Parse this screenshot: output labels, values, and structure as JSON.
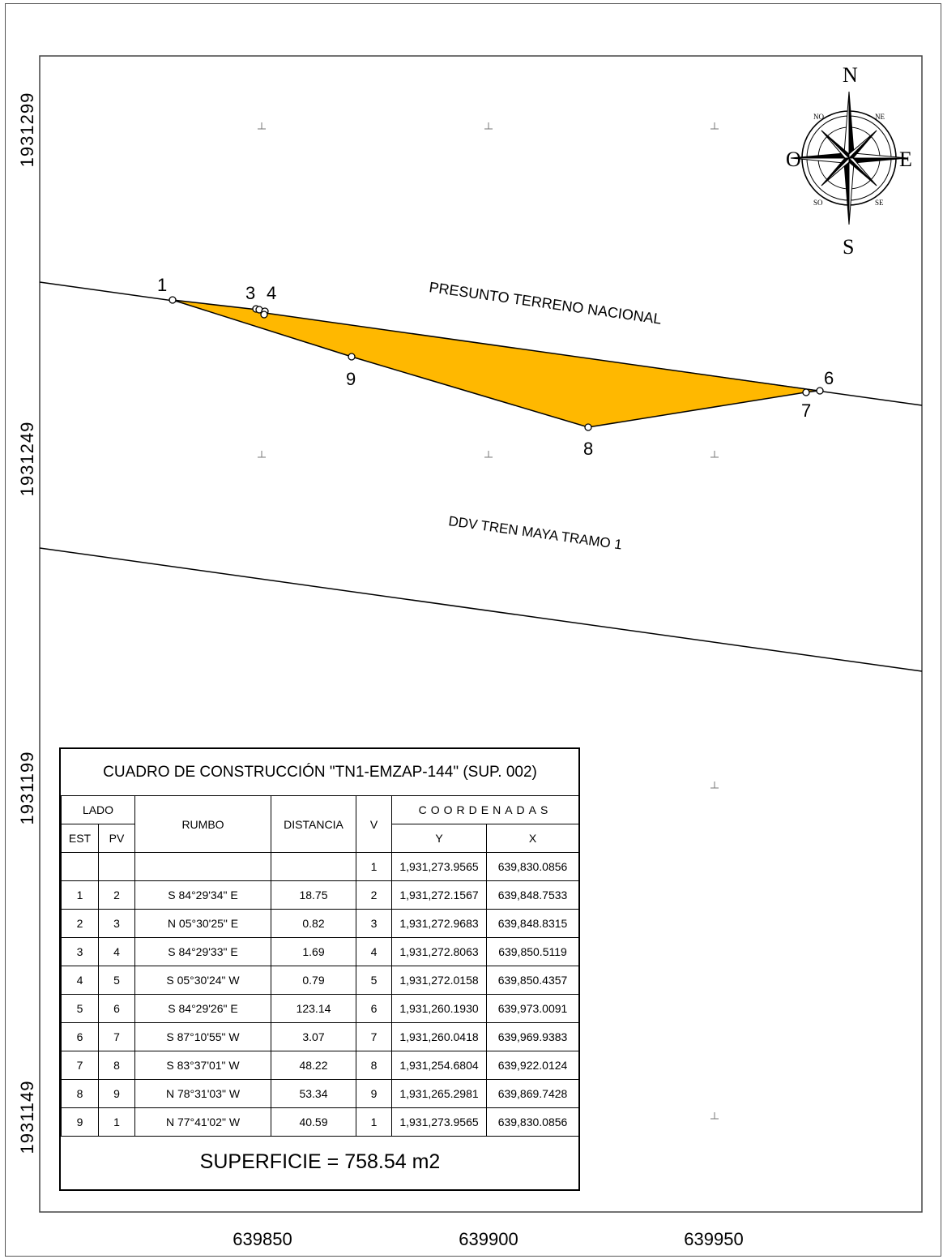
{
  "map": {
    "y_axis_labels": [
      "1931299",
      "1931249",
      "1931199",
      "1931149"
    ],
    "x_axis_labels": [
      "639850",
      "639900",
      "639950"
    ],
    "polygon_fill": "#FFB800",
    "labels": {
      "area_name": "PRESUNTO TERRENO NACIONAL",
      "row_name": "DDV TREN MAYA TRAMO 1"
    },
    "vertices": [
      {
        "id": "1",
        "y": 1931273.9565,
        "x": 639830.0856
      },
      {
        "id": "2",
        "y": 1931272.1567,
        "x": 639848.7533
      },
      {
        "id": "3",
        "y": 1931272.9683,
        "x": 639848.8315
      },
      {
        "id": "4",
        "y": 1931272.8063,
        "x": 639850.5119
      },
      {
        "id": "5",
        "y": 1931272.0158,
        "x": 639850.4357
      },
      {
        "id": "6",
        "y": 1931260.193,
        "x": 639973.0091
      },
      {
        "id": "7",
        "y": 1931260.0418,
        "x": 639969.9383
      },
      {
        "id": "8",
        "y": 1931254.6804,
        "x": 639922.0124
      },
      {
        "id": "9",
        "y": 1931265.2981,
        "x": 639869.7428
      }
    ],
    "vertex_labels": [
      "1",
      "3",
      "4",
      "6",
      "7",
      "8",
      "9"
    ],
    "compass": {
      "n": "N",
      "s": "S",
      "e": "E",
      "w": "O",
      "ne": "NE",
      "no": "NO",
      "se": "SE",
      "so": "SO"
    }
  },
  "table": {
    "title": "CUADRO DE CONSTRUCCIÓN \"TN1-EMZAP-144\" (SUP. 002)",
    "headers": {
      "lado": "LADO",
      "est": "EST",
      "pv": "PV",
      "rumbo": "RUMBO",
      "distancia": "DISTANCIA",
      "v": "V",
      "coordenadas": "COORDENADAS",
      "y": "Y",
      "x": "X"
    },
    "first_row": {
      "v": "1",
      "y": "1,931,273.9565",
      "x": "639,830.0856"
    },
    "rows": [
      {
        "est": "1",
        "pv": "2",
        "rumbo": "S 84°29'34\" E",
        "distancia": "18.75",
        "v": "2",
        "y": "1,931,272.1567",
        "x": "639,848.7533"
      },
      {
        "est": "2",
        "pv": "3",
        "rumbo": "N 05°30'25\" E",
        "distancia": "0.82",
        "v": "3",
        "y": "1,931,272.9683",
        "x": "639,848.8315"
      },
      {
        "est": "3",
        "pv": "4",
        "rumbo": "S 84°29'33\" E",
        "distancia": "1.69",
        "v": "4",
        "y": "1,931,272.8063",
        "x": "639,850.5119"
      },
      {
        "est": "4",
        "pv": "5",
        "rumbo": "S 05°30'24\" W",
        "distancia": "0.79",
        "v": "5",
        "y": "1,931,272.0158",
        "x": "639,850.4357"
      },
      {
        "est": "5",
        "pv": "6",
        "rumbo": "S 84°29'26\" E",
        "distancia": "123.14",
        "v": "6",
        "y": "1,931,260.1930",
        "x": "639,973.0091"
      },
      {
        "est": "6",
        "pv": "7",
        "rumbo": "S 87°10'55\" W",
        "distancia": "3.07",
        "v": "7",
        "y": "1,931,260.0418",
        "x": "639,969.9383"
      },
      {
        "est": "7",
        "pv": "8",
        "rumbo": "S 83°37'01\" W",
        "distancia": "48.22",
        "v": "8",
        "y": "1,931,254.6804",
        "x": "639,922.0124"
      },
      {
        "est": "8",
        "pv": "9",
        "rumbo": "N 78°31'03\" W",
        "distancia": "53.34",
        "v": "9",
        "y": "1,931,265.2981",
        "x": "639,869.7428"
      },
      {
        "est": "9",
        "pv": "1",
        "rumbo": "N 77°41'02\" W",
        "distancia": "40.59",
        "v": "1",
        "y": "1,931,273.9565",
        "x": "639,830.0856"
      }
    ],
    "superficie": "SUPERFICIE = 758.54 m2"
  }
}
